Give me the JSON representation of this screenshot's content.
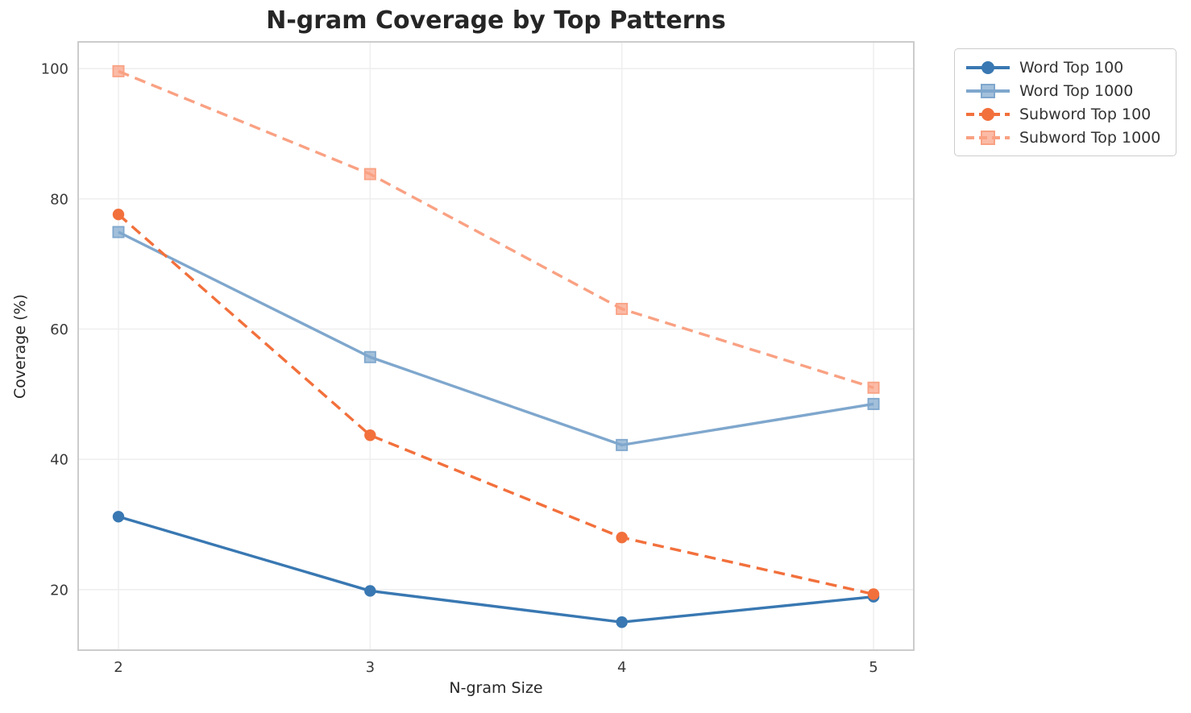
{
  "title": "N-gram Coverage by Top Patterns",
  "chart_data": {
    "type": "line",
    "title": "N-gram Coverage by Top Patterns",
    "xlabel": "N-gram Size",
    "ylabel": "Coverage (%)",
    "x": [
      2,
      3,
      4,
      5
    ],
    "xticks": [
      2,
      3,
      4,
      5
    ],
    "yticks": [
      20,
      40,
      60,
      80,
      100
    ],
    "xlim": [
      1.84,
      5.16
    ],
    "ylim": [
      10.7,
      104.1
    ],
    "grid": true,
    "legend_position": "outside-top-right",
    "background_color": "#ffffff",
    "gridline_color": "#efefef",
    "spine_color": "#cccccc",
    "series": [
      {
        "name": "Word Top 100",
        "values": [
          31.2,
          19.8,
          15.0,
          18.9
        ],
        "color": "#3978b2",
        "line_style": "solid",
        "marker": "circle"
      },
      {
        "name": "Word Top 1000",
        "values": [
          74.9,
          55.7,
          42.2,
          48.5
        ],
        "color": "#7fa7cd",
        "line_style": "solid",
        "marker": "square"
      },
      {
        "name": "Subword Top 100",
        "values": [
          77.6,
          43.7,
          28.0,
          19.3
        ],
        "color": "#f2703c",
        "line_style": "dashed",
        "marker": "circle"
      },
      {
        "name": "Subword Top 1000",
        "values": [
          99.6,
          83.8,
          63.1,
          51.0
        ],
        "color": "#f9a183",
        "line_style": "dashed",
        "marker": "square"
      }
    ]
  }
}
